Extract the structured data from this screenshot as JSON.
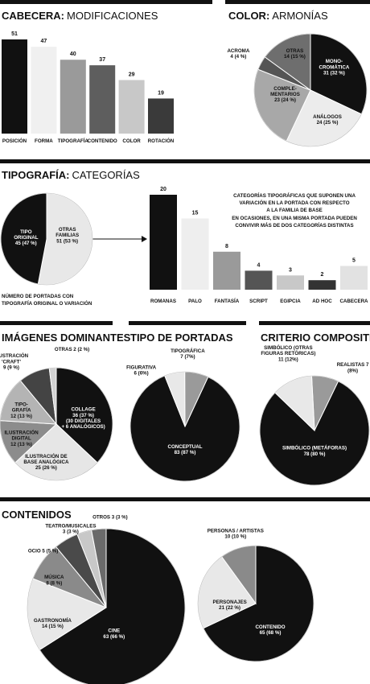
{
  "sections": {
    "cabecera": {
      "bold": "CABECERA:",
      "light": "MODIFICACIONES"
    },
    "color": {
      "bold": "COLOR:",
      "light": "ARMONÍAS"
    },
    "tipografia": {
      "bold": "TIPOGRAFÍA:",
      "light": "CATEGORÍAS"
    },
    "imagenes": {
      "bold": "IMÁGENES DOMINANTES",
      "light": ""
    },
    "tipo_portadas": {
      "bold": "TIPO DE PORTADAS",
      "light": ""
    },
    "criterio": {
      "bold": "CRITERIO COMPOSITIVO",
      "light": ""
    },
    "contenidos": {
      "bold": "CONTENIDOS",
      "light": ""
    }
  },
  "notes": {
    "tipografia_lines": [
      "CATEGORÍAS TIPOGRÁFICAS QUE SUPONEN UNA",
      "VARIACIÓN EN LA PORTADA CON RESPECTO",
      "A LA FAMILIA DE BASE"
    ],
    "tipografia_sub": [
      "EN OCASIONES, EN UNA MISMA PORTADA PUEDEN",
      "CONVIVIR MÁS DE DOS CATEGORÍAS DISTINTAS"
    ],
    "pie_caption": [
      "NÚMERO DE PORTADAS CON",
      "TIPOGRAFÍA ORIGINAL O VARIACIÓN"
    ]
  },
  "chart_data": [
    {
      "id": "cabecera",
      "type": "bar",
      "title": "CABECERA: MODIFICACIONES",
      "categories": [
        "POSICIÓN",
        "FORMA",
        "TIPOGRAFÍA",
        "CONTENIDO",
        "COLOR",
        "ROTACIÓN"
      ],
      "values": [
        51,
        47,
        40,
        37,
        29,
        19
      ],
      "colors": [
        "#111111",
        "#f0f0f0",
        "#9a9a9a",
        "#5e5e5e",
        "#c8c8c8",
        "#3a3a3a"
      ]
    },
    {
      "id": "color",
      "type": "pie",
      "title": "COLOR: ARMONÍAS",
      "slices": [
        {
          "label": [
            "MONO-",
            "CROMÁTICA"
          ],
          "value_text": "31 (32 %)",
          "value": 32,
          "color": "#111111",
          "text": "#ffffff"
        },
        {
          "label": [
            "ANÁLOGOS"
          ],
          "value_text": "24 (25 %)",
          "value": 25,
          "color": "#ececec",
          "text": "#111111"
        },
        {
          "label": [
            "COMPLE-",
            "MENTARIOS"
          ],
          "value_text": "23 (24 %)",
          "value": 24,
          "color": "#a8a8a8",
          "text": "#111111"
        },
        {
          "label": [
            "ACROMA"
          ],
          "value_text": "4 (4 %)",
          "value": 4,
          "color": "#555555",
          "text": "#111111"
        },
        {
          "label": [
            "OTRAS"
          ],
          "value_text": "14 (15 %)",
          "value": 15,
          "color": "#6e6e6e",
          "text": "#111111"
        }
      ]
    },
    {
      "id": "tipo_original",
      "type": "pie",
      "title": "",
      "slices": [
        {
          "label": [
            "OTRAS",
            "FAMILIAS"
          ],
          "value_text": "51 (53 %)",
          "value": 53,
          "color": "#e8e8e8",
          "text": "#111111"
        },
        {
          "label": [
            "TIPO",
            "ORIGINAL"
          ],
          "value_text": "45 (47 %)",
          "value": 47,
          "color": "#111111",
          "text": "#ffffff"
        }
      ]
    },
    {
      "id": "tipografia",
      "type": "bar",
      "title": "TIPOGRAFÍA: CATEGORÍAS",
      "categories": [
        "ROMANAS",
        "PALO",
        "FANTASÍA",
        "SCRIPT",
        "EGIPCIA",
        "AD HOC",
        "CABECERA"
      ],
      "values": [
        20,
        15,
        8,
        4,
        3,
        2,
        5
      ],
      "colors": [
        "#111111",
        "#eeeeee",
        "#9a9a9a",
        "#555555",
        "#c8c8c8",
        "#333333",
        "#e2e2e2"
      ]
    },
    {
      "id": "imagenes",
      "type": "pie",
      "title": "IMÁGENES DOMINANTES",
      "slices": [
        {
          "label": [
            "COLLAGE",
            "36 (37 %)",
            "(30 DIGITALES",
            "+ 6 ANALÓGICOS)"
          ],
          "value_text": "",
          "value": 37,
          "color": "#111111",
          "text": "#ffffff"
        },
        {
          "label": [
            "ILUSTRACIÓN DE",
            "BASE ANALÓGICA"
          ],
          "value_text": "25 (26 %)",
          "value": 26,
          "color": "#e6e6e6",
          "text": "#111111"
        },
        {
          "label": [
            "ILUSTRACIÓN",
            "DIGITAL"
          ],
          "value_text": "12 (13 %)",
          "value": 13,
          "color": "#8c8c8c",
          "text": "#111111"
        },
        {
          "label": [
            "TIPO-",
            "GRAFÍA"
          ],
          "value_text": "12 (13 %)",
          "value": 13,
          "color": "#b4b4b4",
          "text": "#111111"
        },
        {
          "label": [
            "ILUSTRACIÓN",
            "'CRAFT'"
          ],
          "value_text": "9 (9 %)",
          "value": 9,
          "color": "#444444",
          "text": "#111111"
        },
        {
          "label": [
            "OTRAS 2 (2 %)"
          ],
          "value_text": "",
          "value": 2,
          "color": "#d2d2d2",
          "text": "#111111"
        }
      ]
    },
    {
      "id": "tipo_portadas",
      "type": "pie",
      "title": "TIPO DE PORTADAS",
      "slices": [
        {
          "label": [
            "CONCEPTUAL"
          ],
          "value_text": "83 (87 %)",
          "value": 87,
          "color": "#111111",
          "text": "#ffffff"
        },
        {
          "label": [
            "FIGURATIVA"
          ],
          "value_text": "6 (6%)",
          "value": 6,
          "color": "#e8e8e8",
          "text": "#111111"
        },
        {
          "label": [
            "TIPOGRÁFICA"
          ],
          "value_text": "7 (7%)",
          "value": 7,
          "color": "#9a9a9a",
          "text": "#111111"
        }
      ]
    },
    {
      "id": "criterio",
      "type": "pie",
      "title": "CRITERIO COMPOSITIVO",
      "slices": [
        {
          "label": [
            "REALISTAS 7"
          ],
          "value_text": "(8%)",
          "value": 8,
          "color": "#9a9a9a",
          "text": "#111111"
        },
        {
          "label": [
            "SIMBÓLICO (METÁFORAS)"
          ],
          "value_text": "78 (80 %)",
          "value": 80,
          "color": "#111111",
          "text": "#ffffff"
        },
        {
          "label": [
            "SIMBÓLICO (OTRAS",
            "FIGURAS RETÓRICAS)"
          ],
          "value_text": "11 (12%)",
          "value": 12,
          "color": "#e8e8e8",
          "text": "#111111"
        }
      ]
    },
    {
      "id": "contenidos_a",
      "type": "pie",
      "title": "CONTENIDOS",
      "slices": [
        {
          "label": [
            "CINE"
          ],
          "value_text": "63 (66 %)",
          "value": 66,
          "color": "#111111",
          "text": "#ffffff"
        },
        {
          "label": [
            "GASTRONOMÍA"
          ],
          "value_text": "14 (15 %)",
          "value": 15,
          "color": "#e8e8e8",
          "text": "#111111"
        },
        {
          "label": [
            "MÚSICA"
          ],
          "value_text": "8 (8 %)",
          "value": 8,
          "color": "#8a8a8a",
          "text": "#111111"
        },
        {
          "label": [
            "OCIO 5 (5 %)"
          ],
          "value_text": "",
          "value": 5,
          "color": "#4a4a4a",
          "text": "#111111"
        },
        {
          "label": [
            "TEATRO/MUSICALES"
          ],
          "value_text": "3 (3 %)",
          "value": 3,
          "color": "#c8c8c8",
          "text": "#111111"
        },
        {
          "label": [
            "OTROS 3 (3 %)"
          ],
          "value_text": "",
          "value": 3,
          "color": "#6a6a6a",
          "text": "#111111"
        }
      ]
    },
    {
      "id": "contenidos_b",
      "type": "pie",
      "title": "",
      "slices": [
        {
          "label": [
            "CONTENIDO"
          ],
          "value_text": "65 (68 %)",
          "value": 68,
          "color": "#111111",
          "text": "#ffffff"
        },
        {
          "label": [
            "PERSONAJES"
          ],
          "value_text": "21 (22 %)",
          "value": 22,
          "color": "#e8e8e8",
          "text": "#111111"
        },
        {
          "label": [
            "PERSONAS / ARTISTAS"
          ],
          "value_text": "10 (10 %)",
          "value": 10,
          "color": "#8a8a8a",
          "text": "#111111"
        }
      ]
    }
  ]
}
